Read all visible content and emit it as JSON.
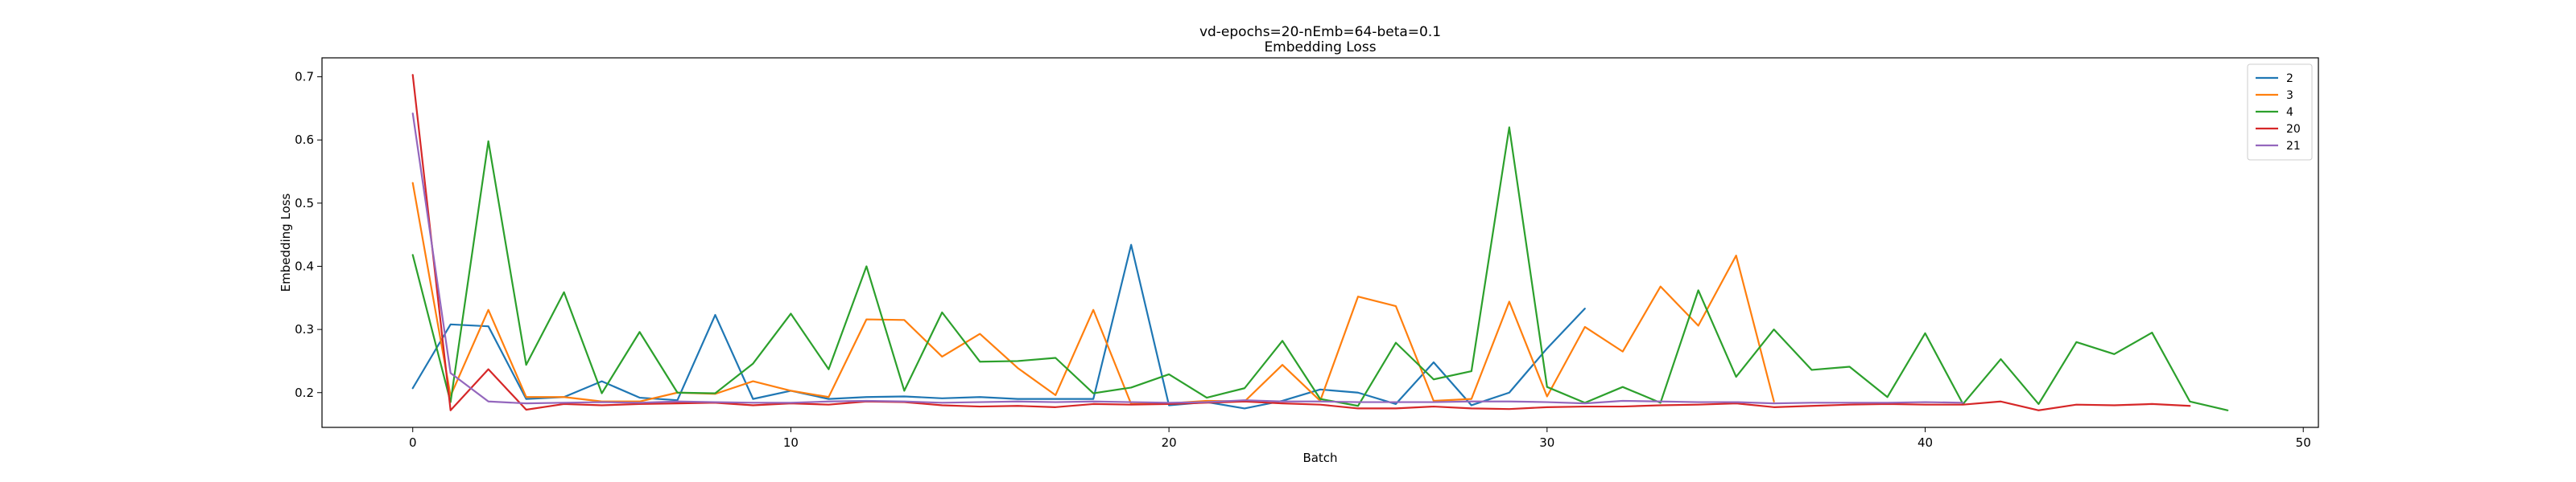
{
  "chart_data": {
    "type": "line",
    "title": "vd-epochs=20-nEmb=64-beta=0.1",
    "subtitle": "Embedding Loss",
    "xlabel": "Batch",
    "ylabel": "Embedding Loss",
    "xlim": [
      -2.4,
      50.4
    ],
    "ylim": [
      0.145,
      0.73
    ],
    "xticks": [
      0,
      10,
      20,
      30,
      40,
      50
    ],
    "yticks": [
      0.2,
      0.3,
      0.4,
      0.5,
      0.6,
      0.7
    ],
    "grid": false,
    "legend_position": "top-right",
    "series": [
      {
        "name": "2",
        "color": "#1f77b4",
        "values": [
          0.207,
          0.308,
          0.305,
          0.19,
          0.193,
          0.218,
          0.192,
          0.188,
          0.323,
          0.19,
          0.203,
          0.19,
          0.193,
          0.194,
          0.191,
          0.193,
          0.19,
          0.19,
          0.19,
          0.434,
          0.18,
          0.185,
          0.175,
          0.187,
          0.205,
          0.2,
          0.182,
          0.248,
          0.18,
          0.2,
          0.27,
          0.333
        ]
      },
      {
        "name": "3",
        "color": "#ff7f0e",
        "values": [
          0.532,
          0.195,
          0.331,
          0.193,
          0.193,
          0.186,
          0.186,
          0.2,
          0.198,
          0.218,
          0.203,
          0.193,
          0.316,
          0.315,
          0.257,
          0.293,
          0.239,
          0.196,
          0.331,
          0.182,
          0.183,
          0.187,
          0.186,
          0.244,
          0.187,
          0.352,
          0.337,
          0.187,
          0.19,
          0.344,
          0.194,
          0.304,
          0.265,
          0.368,
          0.306,
          0.417,
          0.186
        ]
      },
      {
        "name": "4",
        "color": "#2ca02c",
        "values": [
          0.418,
          0.185,
          0.598,
          0.244,
          0.359,
          0.199,
          0.296,
          0.2,
          0.199,
          0.246,
          0.325,
          0.237,
          0.4,
          0.203,
          0.327,
          0.249,
          0.25,
          0.255,
          0.199,
          0.208,
          0.229,
          0.192,
          0.207,
          0.282,
          0.19,
          0.179,
          0.279,
          0.221,
          0.234,
          0.62,
          0.209,
          0.184,
          0.209,
          0.184,
          0.362,
          0.225,
          0.3,
          0.236,
          0.241,
          0.193,
          0.294,
          0.182,
          0.253,
          0.182,
          0.28,
          0.261,
          0.295,
          0.186,
          0.172
        ]
      },
      {
        "name": "20",
        "color": "#d62728",
        "values": [
          0.703,
          0.172,
          0.237,
          0.173,
          0.182,
          0.18,
          0.182,
          0.183,
          0.184,
          0.18,
          0.183,
          0.181,
          0.186,
          0.185,
          0.18,
          0.178,
          0.179,
          0.177,
          0.182,
          0.181,
          0.182,
          0.184,
          0.186,
          0.183,
          0.181,
          0.175,
          0.175,
          0.178,
          0.175,
          0.174,
          0.177,
          0.178,
          0.178,
          0.18,
          0.181,
          0.183,
          0.177,
          0.179,
          0.181,
          0.182,
          0.181,
          0.181,
          0.186,
          0.172,
          0.181,
          0.18,
          0.182,
          0.179
        ]
      },
      {
        "name": "21",
        "color": "#9467bd",
        "values": [
          0.642,
          0.231,
          0.186,
          0.183,
          0.184,
          0.185,
          0.184,
          0.186,
          0.185,
          0.184,
          0.184,
          0.186,
          0.187,
          0.186,
          0.184,
          0.185,
          0.186,
          0.185,
          0.186,
          0.185,
          0.184,
          0.185,
          0.188,
          0.186,
          0.186,
          0.185,
          0.185,
          0.185,
          0.186,
          0.186,
          0.185,
          0.183,
          0.187,
          0.186,
          0.185,
          0.185,
          0.183,
          0.184,
          0.184,
          0.184,
          0.185,
          0.184
        ]
      }
    ]
  }
}
